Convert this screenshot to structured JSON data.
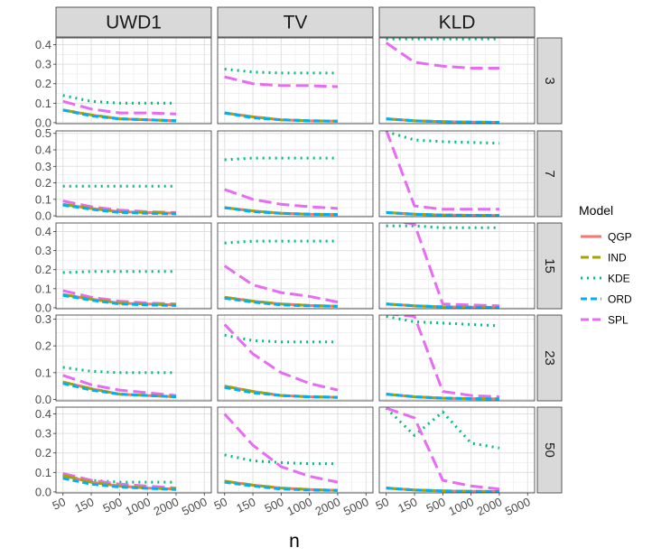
{
  "chart_data": {
    "type": "line",
    "facet_columns": [
      "UWD1",
      "TV",
      "KLD"
    ],
    "facet_rows": [
      "3",
      "7",
      "15",
      "23",
      "50"
    ],
    "x_label": "n",
    "x_categories": [
      "50",
      "150",
      "500",
      "1000",
      "2000",
      "5000"
    ],
    "series_plotted_at": [
      "50",
      "150",
      "500",
      "1000",
      "2000"
    ],
    "legend": {
      "title": "Model",
      "placement": "right",
      "entries": [
        {
          "name": "QGP",
          "color": "#F8766D",
          "dash": "solid"
        },
        {
          "name": "IND",
          "color": "#A3A500",
          "dash": "longdash"
        },
        {
          "name": "KDE",
          "color": "#00BF7D",
          "dash": "dotted"
        },
        {
          "name": "ORD",
          "color": "#00B0F6",
          "dash": "dashed"
        },
        {
          "name": "SPL",
          "color": "#E76BF3",
          "dash": "longdash"
        }
      ]
    },
    "y_ticks_by_row": [
      [
        "0.0",
        "0.1",
        "0.2",
        "0.3",
        "0.4"
      ],
      [
        "0.0",
        "0.1",
        "0.2",
        "0.3",
        "0.4",
        "0.5"
      ],
      [
        "0.0",
        "0.1",
        "0.2",
        "0.3",
        "0.4"
      ],
      [
        "0.0",
        "0.1",
        "0.2",
        "0.3"
      ],
      [
        "0.0",
        "0.1",
        "0.2",
        "0.3",
        "0.4"
      ]
    ],
    "ylim_by_row": [
      [
        -0.005,
        0.435
      ],
      [
        -0.005,
        0.515
      ],
      [
        -0.005,
        0.445
      ],
      [
        -0.005,
        0.315
      ],
      [
        -0.005,
        0.435
      ]
    ],
    "grid": true,
    "panels": [
      {
        "col": "UWD1",
        "row": "3",
        "series": [
          {
            "name": "QGP",
            "values": [
              0.065,
              0.04,
              0.02,
              0.015,
              0.01
            ]
          },
          {
            "name": "IND",
            "values": [
              0.065,
              0.04,
              0.02,
              0.015,
              0.01
            ]
          },
          {
            "name": "KDE",
            "values": [
              0.14,
              0.11,
              0.1,
              0.1,
              0.1
            ]
          },
          {
            "name": "ORD",
            "values": [
              0.065,
              0.035,
              0.02,
              0.015,
              0.01
            ]
          },
          {
            "name": "SPL",
            "values": [
              0.11,
              0.07,
              0.05,
              0.05,
              0.045
            ]
          }
        ]
      },
      {
        "col": "TV",
        "row": "3",
        "series": [
          {
            "name": "QGP",
            "values": [
              0.05,
              0.03,
              0.015,
              0.01,
              0.008
            ]
          },
          {
            "name": "IND",
            "values": [
              0.05,
              0.03,
              0.015,
              0.01,
              0.008
            ]
          },
          {
            "name": "KDE",
            "values": [
              0.275,
              0.26,
              0.255,
              0.255,
              0.255
            ]
          },
          {
            "name": "ORD",
            "values": [
              0.05,
              0.025,
              0.015,
              0.01,
              0.008
            ]
          },
          {
            "name": "SPL",
            "values": [
              0.235,
              0.2,
              0.19,
              0.19,
              0.185
            ]
          }
        ]
      },
      {
        "col": "KLD",
        "row": "3",
        "series": [
          {
            "name": "QGP",
            "values": [
              0.02,
              0.01,
              0.005,
              0.003,
              0.002
            ]
          },
          {
            "name": "IND",
            "values": [
              0.02,
              0.01,
              0.005,
              0.003,
              0.002
            ]
          },
          {
            "name": "KDE",
            "values": [
              0.43,
              0.43,
              0.43,
              0.43,
              0.43
            ]
          },
          {
            "name": "ORD",
            "values": [
              0.02,
              0.01,
              0.005,
              0.003,
              0.002
            ]
          },
          {
            "name": "SPL",
            "values": [
              0.41,
              0.31,
              0.29,
              0.28,
              0.28
            ]
          }
        ]
      },
      {
        "col": "UWD1",
        "row": "7",
        "series": [
          {
            "name": "QGP",
            "values": [
              0.07,
              0.045,
              0.025,
              0.02,
              0.015
            ]
          },
          {
            "name": "IND",
            "values": [
              0.07,
              0.045,
              0.025,
              0.02,
              0.015
            ]
          },
          {
            "name": "KDE",
            "values": [
              0.18,
              0.18,
              0.18,
              0.18,
              0.18
            ]
          },
          {
            "name": "ORD",
            "values": [
              0.065,
              0.04,
              0.02,
              0.015,
              0.012
            ]
          },
          {
            "name": "SPL",
            "values": [
              0.09,
              0.055,
              0.035,
              0.025,
              0.02
            ]
          }
        ]
      },
      {
        "col": "TV",
        "row": "7",
        "series": [
          {
            "name": "QGP",
            "values": [
              0.05,
              0.03,
              0.015,
              0.01,
              0.008
            ]
          },
          {
            "name": "IND",
            "values": [
              0.05,
              0.03,
              0.015,
              0.01,
              0.008
            ]
          },
          {
            "name": "KDE",
            "values": [
              0.34,
              0.35,
              0.35,
              0.35,
              0.35
            ]
          },
          {
            "name": "ORD",
            "values": [
              0.05,
              0.025,
              0.015,
              0.01,
              0.008
            ]
          },
          {
            "name": "SPL",
            "values": [
              0.16,
              0.1,
              0.07,
              0.055,
              0.045
            ]
          }
        ]
      },
      {
        "col": "KLD",
        "row": "7",
        "series": [
          {
            "name": "QGP",
            "values": [
              0.02,
              0.01,
              0.005,
              0.003,
              0.002
            ]
          },
          {
            "name": "IND",
            "values": [
              0.02,
              0.01,
              0.005,
              0.003,
              0.002
            ]
          },
          {
            "name": "KDE",
            "values": [
              0.51,
              0.46,
              0.45,
              0.445,
              0.44
            ]
          },
          {
            "name": "ORD",
            "values": [
              0.02,
              0.01,
              0.005,
              0.003,
              0.002
            ]
          },
          {
            "name": "SPL",
            "values": [
              0.52,
              0.06,
              0.04,
              0.04,
              0.04
            ]
          }
        ]
      },
      {
        "col": "UWD1",
        "row": "15",
        "series": [
          {
            "name": "QGP",
            "values": [
              0.07,
              0.045,
              0.025,
              0.02,
              0.015
            ]
          },
          {
            "name": "IND",
            "values": [
              0.07,
              0.045,
              0.025,
              0.02,
              0.015
            ]
          },
          {
            "name": "KDE",
            "values": [
              0.185,
              0.19,
              0.19,
              0.19,
              0.19
            ]
          },
          {
            "name": "ORD",
            "values": [
              0.065,
              0.04,
              0.02,
              0.015,
              0.012
            ]
          },
          {
            "name": "SPL",
            "values": [
              0.09,
              0.055,
              0.035,
              0.025,
              0.02
            ]
          }
        ]
      },
      {
        "col": "TV",
        "row": "15",
        "series": [
          {
            "name": "QGP",
            "values": [
              0.055,
              0.035,
              0.02,
              0.012,
              0.008
            ]
          },
          {
            "name": "IND",
            "values": [
              0.055,
              0.035,
              0.02,
              0.012,
              0.008
            ]
          },
          {
            "name": "KDE",
            "values": [
              0.34,
              0.35,
              0.35,
              0.35,
              0.35
            ]
          },
          {
            "name": "ORD",
            "values": [
              0.05,
              0.03,
              0.015,
              0.01,
              0.008
            ]
          },
          {
            "name": "SPL",
            "values": [
              0.22,
              0.12,
              0.08,
              0.06,
              0.03
            ]
          }
        ]
      },
      {
        "col": "KLD",
        "row": "15",
        "series": [
          {
            "name": "QGP",
            "values": [
              0.02,
              0.01,
              0.005,
              0.003,
              0.002
            ]
          },
          {
            "name": "IND",
            "values": [
              0.02,
              0.01,
              0.005,
              0.003,
              0.002
            ]
          },
          {
            "name": "KDE",
            "values": [
              0.43,
              0.43,
              0.42,
              0.42,
              0.42
            ]
          },
          {
            "name": "ORD",
            "values": [
              0.02,
              0.01,
              0.005,
              0.003,
              0.002
            ]
          },
          {
            "name": "SPL",
            "values": [
              0.46,
              0.44,
              0.02,
              0.015,
              0.01
            ]
          }
        ]
      },
      {
        "col": "UWD1",
        "row": "23",
        "series": [
          {
            "name": "QGP",
            "values": [
              0.065,
              0.04,
              0.02,
              0.015,
              0.01
            ]
          },
          {
            "name": "IND",
            "values": [
              0.065,
              0.04,
              0.02,
              0.015,
              0.01
            ]
          },
          {
            "name": "KDE",
            "values": [
              0.12,
              0.105,
              0.1,
              0.1,
              0.1
            ]
          },
          {
            "name": "ORD",
            "values": [
              0.06,
              0.035,
              0.02,
              0.015,
              0.01
            ]
          },
          {
            "name": "SPL",
            "values": [
              0.09,
              0.055,
              0.035,
              0.025,
              0.015
            ]
          }
        ]
      },
      {
        "col": "TV",
        "row": "23",
        "series": [
          {
            "name": "QGP",
            "values": [
              0.05,
              0.03,
              0.015,
              0.01,
              0.008
            ]
          },
          {
            "name": "IND",
            "values": [
              0.05,
              0.03,
              0.015,
              0.01,
              0.008
            ]
          },
          {
            "name": "KDE",
            "values": [
              0.24,
              0.22,
              0.215,
              0.215,
              0.215
            ]
          },
          {
            "name": "ORD",
            "values": [
              0.045,
              0.025,
              0.015,
              0.01,
              0.008
            ]
          },
          {
            "name": "SPL",
            "values": [
              0.28,
              0.17,
              0.1,
              0.06,
              0.035
            ]
          }
        ]
      },
      {
        "col": "KLD",
        "row": "23",
        "series": [
          {
            "name": "QGP",
            "values": [
              0.02,
              0.01,
              0.005,
              0.003,
              0.002
            ]
          },
          {
            "name": "IND",
            "values": [
              0.02,
              0.01,
              0.005,
              0.003,
              0.002
            ]
          },
          {
            "name": "KDE",
            "values": [
              0.31,
              0.29,
              0.285,
              0.28,
              0.275
            ]
          },
          {
            "name": "ORD",
            "values": [
              0.02,
              0.01,
              0.005,
              0.003,
              0.002
            ]
          },
          {
            "name": "SPL",
            "values": [
              0.32,
              0.31,
              0.03,
              0.015,
              0.01
            ]
          }
        ]
      },
      {
        "col": "UWD1",
        "row": "50",
        "series": [
          {
            "name": "QGP",
            "values": [
              0.085,
              0.05,
              0.03,
              0.02,
              0.015
            ]
          },
          {
            "name": "IND",
            "values": [
              0.085,
              0.05,
              0.03,
              0.02,
              0.015
            ]
          },
          {
            "name": "KDE",
            "values": [
              0.08,
              0.06,
              0.05,
              0.05,
              0.05
            ]
          },
          {
            "name": "ORD",
            "values": [
              0.07,
              0.04,
              0.025,
              0.018,
              0.012
            ]
          },
          {
            "name": "SPL",
            "values": [
              0.095,
              0.06,
              0.04,
              0.03,
              0.02
            ]
          }
        ]
      },
      {
        "col": "TV",
        "row": "50",
        "series": [
          {
            "name": "QGP",
            "values": [
              0.055,
              0.035,
              0.02,
              0.012,
              0.008
            ]
          },
          {
            "name": "IND",
            "values": [
              0.055,
              0.035,
              0.02,
              0.012,
              0.008
            ]
          },
          {
            "name": "KDE",
            "values": [
              0.19,
              0.16,
              0.15,
              0.145,
              0.145
            ]
          },
          {
            "name": "ORD",
            "values": [
              0.05,
              0.03,
              0.015,
              0.01,
              0.008
            ]
          },
          {
            "name": "SPL",
            "values": [
              0.4,
              0.24,
              0.13,
              0.08,
              0.05
            ]
          }
        ]
      },
      {
        "col": "KLD",
        "row": "50",
        "series": [
          {
            "name": "QGP",
            "values": [
              0.02,
              0.01,
              0.005,
              0.003,
              0.002
            ]
          },
          {
            "name": "IND",
            "values": [
              0.02,
              0.01,
              0.005,
              0.003,
              0.002
            ]
          },
          {
            "name": "KDE",
            "values": [
              0.43,
              0.29,
              0.41,
              0.25,
              0.225
            ]
          },
          {
            "name": "ORD",
            "values": [
              0.02,
              0.01,
              0.005,
              0.003,
              0.002
            ]
          },
          {
            "name": "SPL",
            "values": [
              0.43,
              0.38,
              0.06,
              0.03,
              0.015
            ]
          }
        ]
      }
    ]
  }
}
